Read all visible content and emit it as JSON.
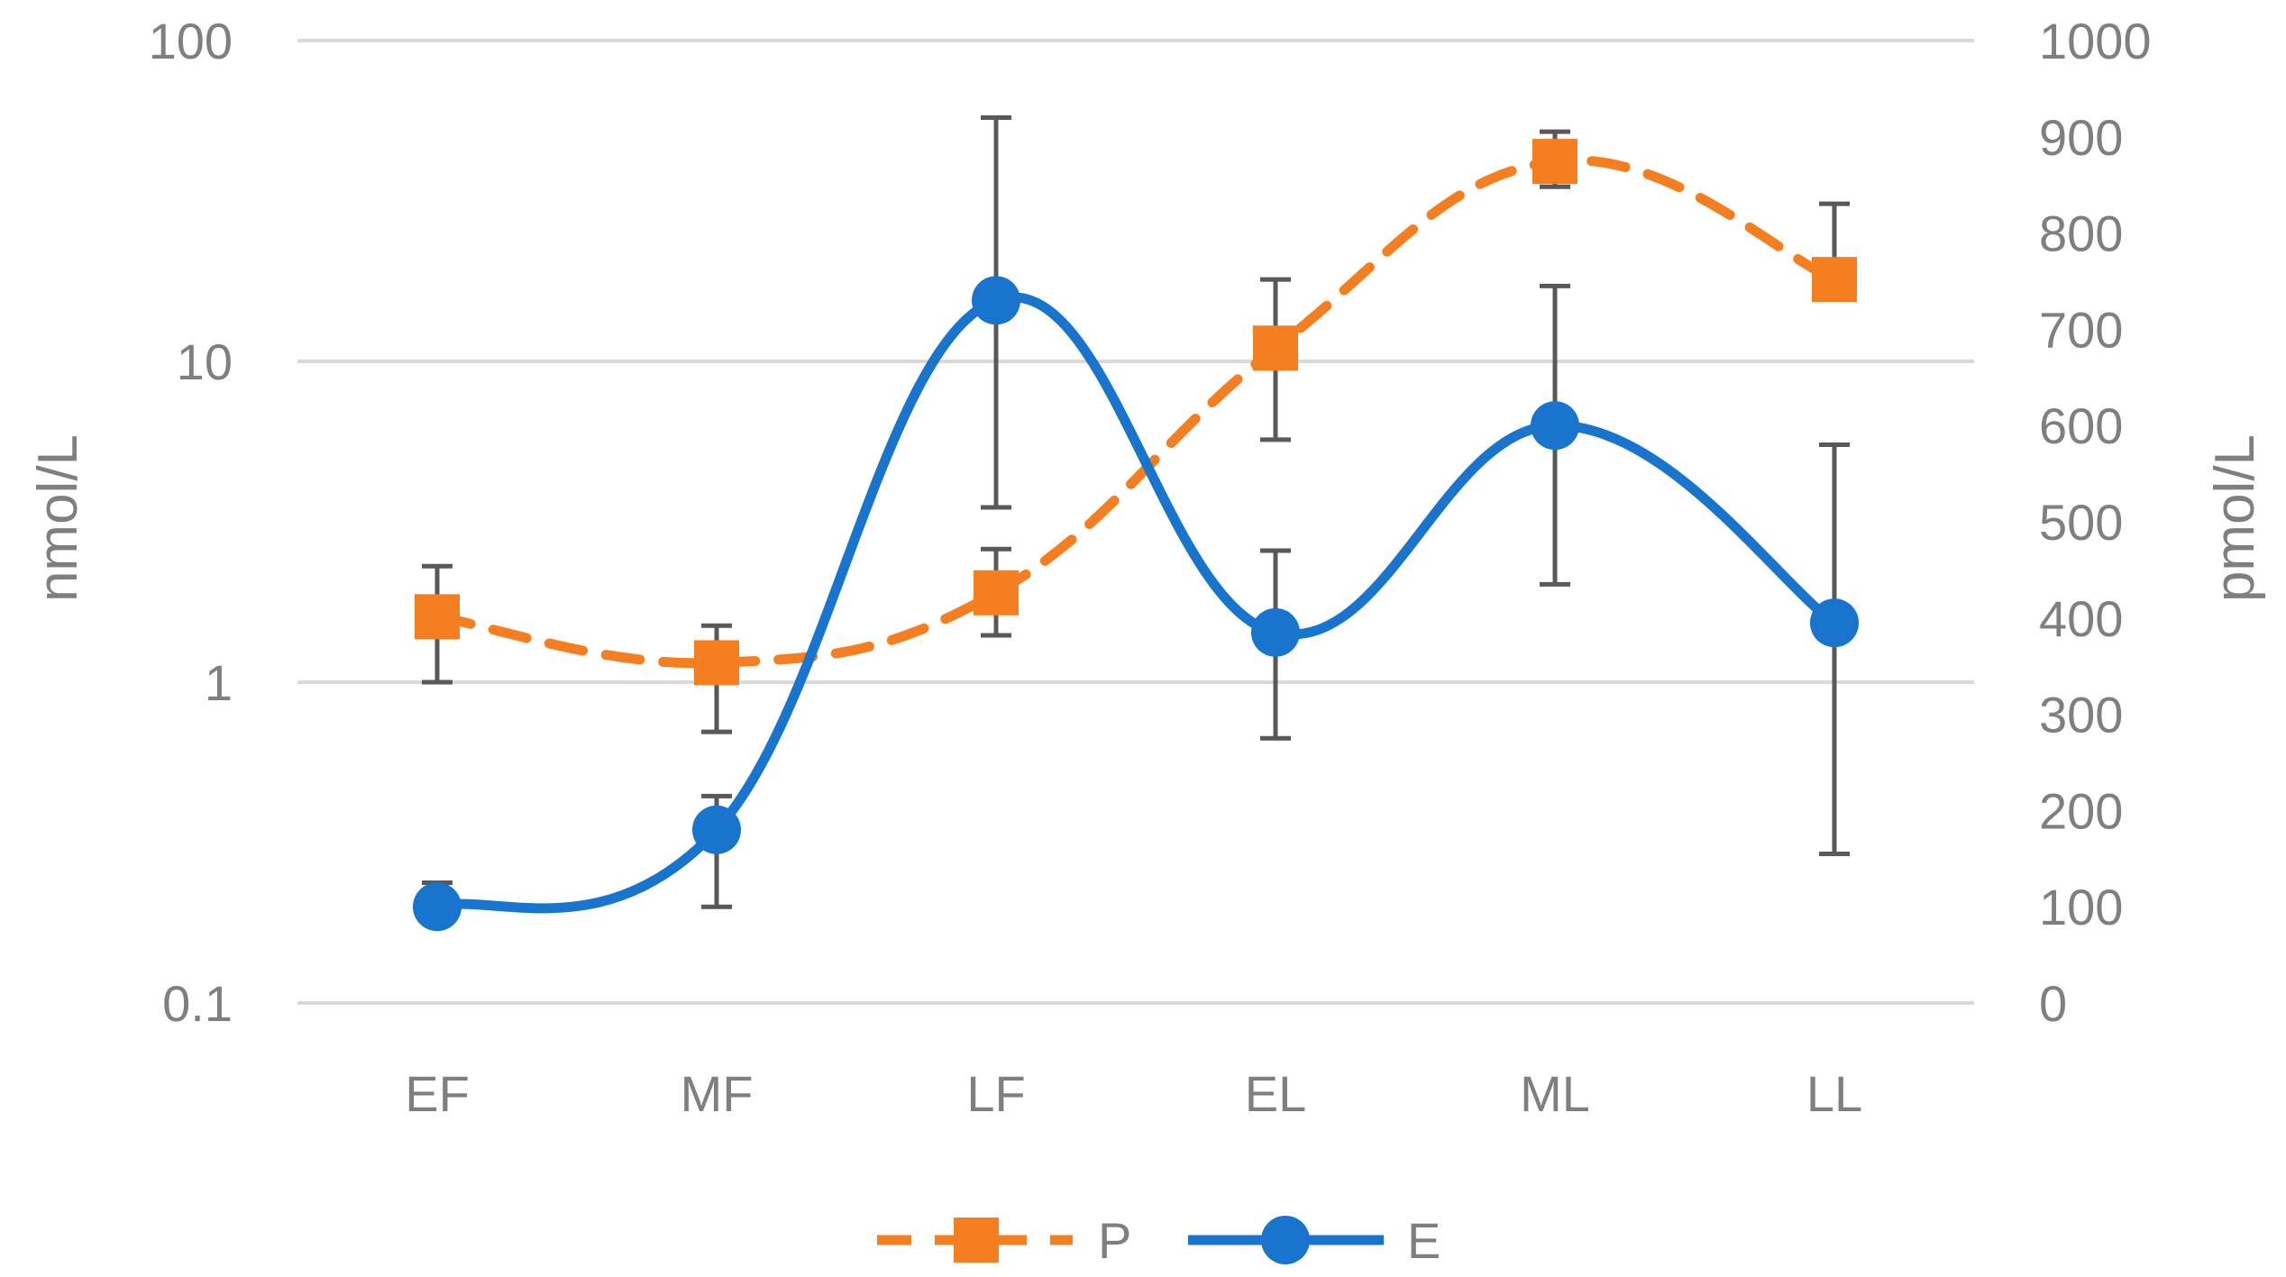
{
  "chart_data": {
    "type": "line",
    "categories": [
      "EF",
      "MF",
      "LF",
      "EL",
      "ML",
      "LL"
    ],
    "y_left": {
      "label": "nmol/L",
      "scale": "log",
      "range": [
        0.1,
        100
      ],
      "ticks": [
        "0.1",
        "1",
        "10",
        "100"
      ]
    },
    "y_right": {
      "label": "pmol/L",
      "scale": "linear",
      "range": [
        0,
        1000
      ],
      "ticks": [
        "0",
        "100",
        "200",
        "300",
        "400",
        "500",
        "600",
        "700",
        "800",
        "900",
        "1000"
      ]
    },
    "grid": true,
    "legend_position": "bottom",
    "series": [
      {
        "name": "P",
        "axis": "left",
        "style": "dashed",
        "marker": "square",
        "color": "#F47E20",
        "values": [
          1.6,
          1.15,
          1.9,
          11,
          42,
          18
        ],
        "error_low": [
          1.0,
          0.7,
          1.4,
          5.7,
          35,
          18
        ],
        "error_high": [
          2.3,
          1.5,
          2.6,
          18,
          52,
          31
        ]
      },
      {
        "name": "E",
        "axis": "right",
        "style": "solid",
        "marker": "circle",
        "color": "#1874CD",
        "values": [
          100,
          180,
          730,
          385,
          600,
          395
        ],
        "error_low": [
          100,
          100,
          515,
          275,
          435,
          155
        ],
        "error_high": [
          125,
          215,
          920,
          470,
          745,
          580
        ]
      }
    ]
  }
}
